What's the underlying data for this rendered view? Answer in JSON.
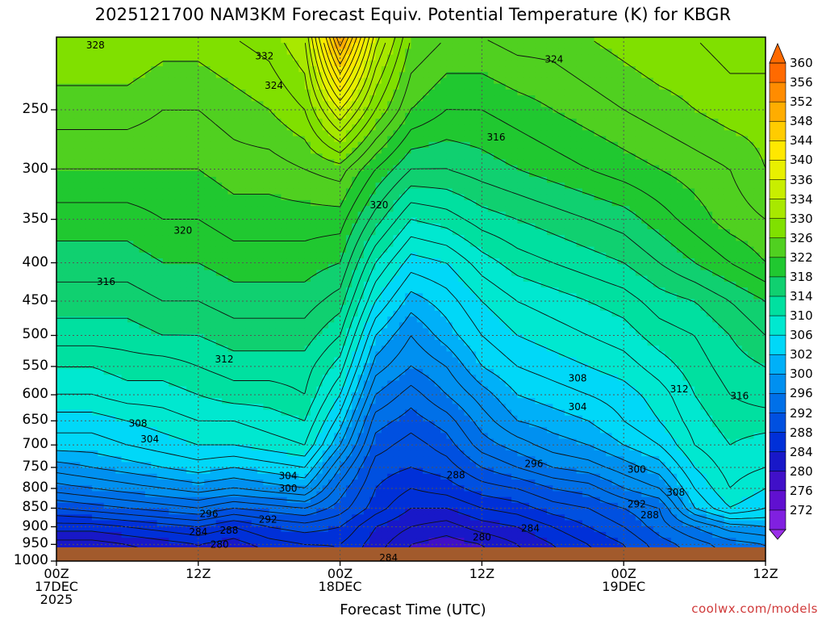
{
  "title": "2025121700 NAM3KM Forecast Equiv. Potential Temperature (K) for KBGR",
  "credit": "coolwx.com/models",
  "chart_data": {
    "type": "heatmap",
    "title": "2025121700 NAM3KM Forecast Equiv. Potential Temperature (K) for KBGR",
    "xlabel": "Forecast Time (UTC)",
    "ylabel": "",
    "x_range_hours": [
      0,
      60
    ],
    "y_range_hPa": [
      1000,
      200
    ],
    "y_scale": "log",
    "grid": true,
    "x_ticks": [
      {
        "hour": 0,
        "l1": "00Z",
        "l2": "17DEC",
        "l3": "2025"
      },
      {
        "hour": 12,
        "l1": "12Z",
        "l2": "",
        "l3": ""
      },
      {
        "hour": 24,
        "l1": "00Z",
        "l2": "18DEC",
        "l3": ""
      },
      {
        "hour": 36,
        "l1": "12Z",
        "l2": "",
        "l3": ""
      },
      {
        "hour": 48,
        "l1": "00Z",
        "l2": "19DEC",
        "l3": ""
      },
      {
        "hour": 60,
        "l1": "12Z",
        "l2": "",
        "l3": ""
      }
    ],
    "y_ticks": [
      "250",
      "300",
      "350",
      "400",
      "450",
      "500",
      "550",
      "600",
      "650",
      "700",
      "750",
      "800",
      "850",
      "900",
      "950",
      "1000"
    ],
    "colorbar": {
      "labels": [
        "360",
        "356",
        "352",
        "348",
        "344",
        "340",
        "336",
        "334",
        "330",
        "326",
        "322",
        "318",
        "314",
        "310",
        "306",
        "302",
        "300",
        "296",
        "292",
        "288",
        "284",
        "280",
        "276",
        "272"
      ],
      "colors": [
        "#ff6a00",
        "#ff8c00",
        "#ffad00",
        "#ffcc00",
        "#ffe800",
        "#e8f000",
        "#c8ee00",
        "#a8e800",
        "#80e000",
        "#50d020",
        "#20c830",
        "#10d070",
        "#00e0a0",
        "#00e8d0",
        "#00d8f8",
        "#00b0f8",
        "#0090f0",
        "#0070e8",
        "#0050e0",
        "#0030d8",
        "#1818c8",
        "#4010c8",
        "#6010d0",
        "#8020e0"
      ]
    },
    "time_series_hours": [
      0,
      3,
      6,
      9,
      12,
      15,
      18,
      21,
      24,
      27,
      30,
      33,
      36,
      39,
      42,
      45,
      48,
      51,
      54,
      57,
      60
    ],
    "levels_hPa": [
      1000,
      950,
      900,
      850,
      800,
      750,
      700,
      650,
      600,
      550,
      500,
      450,
      400,
      350,
      300,
      250,
      200
    ],
    "values_K": [
      [
        279,
        279,
        280,
        282,
        283,
        281,
        283,
        284,
        286,
        282,
        279,
        278,
        279,
        281,
        283,
        285,
        287,
        290,
        292,
        294,
        295
      ],
      [
        281,
        281,
        282,
        283,
        284,
        283,
        285,
        286,
        286,
        283,
        280,
        279,
        280,
        282,
        284,
        286,
        288,
        291,
        293,
        295,
        296
      ],
      [
        285,
        285,
        286,
        287,
        288,
        286,
        288,
        289,
        288,
        284,
        282,
        281,
        283,
        284,
        286,
        288,
        290,
        293,
        296,
        299,
        300
      ],
      [
        290,
        291,
        292,
        293,
        294,
        292,
        293,
        294,
        291,
        287,
        284,
        284,
        286,
        287,
        289,
        290,
        292,
        294,
        302,
        306,
        304
      ],
      [
        295,
        296,
        297,
        298,
        299,
        298,
        299,
        300,
        293,
        288,
        286,
        287,
        289,
        290,
        292,
        293,
        296,
        298,
        304,
        308,
        306
      ],
      [
        299,
        300,
        301,
        302,
        303,
        302,
        303,
        304,
        296,
        289,
        288,
        289,
        292,
        294,
        296,
        297,
        299,
        301,
        306,
        309,
        308
      ],
      [
        303,
        303,
        304,
        305,
        306,
        306,
        307,
        308,
        300,
        291,
        289,
        291,
        295,
        297,
        299,
        300,
        302,
        304,
        308,
        310,
        309
      ],
      [
        305,
        305,
        306,
        307,
        308,
        308,
        309,
        310,
        303,
        293,
        291,
        293,
        297,
        300,
        301,
        302,
        304,
        306,
        309,
        311,
        311
      ],
      [
        308,
        308,
        309,
        309,
        310,
        311,
        311,
        312,
        306,
        296,
        293,
        296,
        299,
        302,
        303,
        304,
        305,
        307,
        310,
        312,
        313
      ],
      [
        310,
        310,
        311,
        311,
        312,
        313,
        313,
        313,
        309,
        299,
        296,
        298,
        302,
        304,
        305,
        306,
        307,
        309,
        311,
        313,
        314
      ],
      [
        313,
        313,
        313,
        314,
        314,
        315,
        315,
        315,
        312,
        302,
        298,
        301,
        304,
        306,
        307,
        308,
        309,
        311,
        312,
        314,
        316
      ],
      [
        315,
        315,
        315,
        316,
        316,
        317,
        317,
        317,
        315,
        306,
        301,
        303,
        306,
        308,
        309,
        310,
        311,
        313,
        314,
        316,
        318
      ],
      [
        317,
        317,
        317,
        318,
        318,
        319,
        319,
        319,
        318,
        310,
        305,
        306,
        309,
        311,
        312,
        313,
        314,
        316,
        318,
        320,
        322
      ],
      [
        319,
        319,
        319,
        320,
        320,
        321,
        321,
        321,
        321,
        315,
        310,
        311,
        313,
        314,
        315,
        316,
        317,
        319,
        321,
        323,
        324
      ],
      [
        322,
        322,
        322,
        322,
        322,
        323,
        323,
        324,
        325,
        320,
        316,
        316,
        317,
        318,
        319,
        320,
        321,
        322,
        323,
        324,
        326
      ],
      [
        325,
        325,
        325,
        324,
        324,
        325,
        326,
        328,
        336,
        328,
        322,
        320,
        320,
        321,
        322,
        323,
        324,
        325,
        326,
        327,
        327
      ],
      [
        328,
        328,
        328,
        327,
        327,
        328,
        329,
        332,
        352,
        335,
        326,
        324,
        324,
        325,
        325,
        326,
        327,
        328,
        328,
        329,
        329
      ]
    ],
    "contour_labels": [
      {
        "value": "328",
        "hour": 3.3,
        "hPa": 205
      },
      {
        "value": "332",
        "hour": 17.6,
        "hPa": 212
      },
      {
        "value": "324",
        "hour": 18.4,
        "hPa": 232
      },
      {
        "value": "324",
        "hour": 42.1,
        "hPa": 214
      },
      {
        "value": "316",
        "hour": 37.2,
        "hPa": 272
      },
      {
        "value": "320",
        "hour": 27.3,
        "hPa": 335
      },
      {
        "value": "320",
        "hour": 10.7,
        "hPa": 362
      },
      {
        "value": "316",
        "hour": 4.2,
        "hPa": 424
      },
      {
        "value": "312",
        "hour": 14.2,
        "hPa": 538
      },
      {
        "value": "308",
        "hour": 44.1,
        "hPa": 570
      },
      {
        "value": "312",
        "hour": 52.7,
        "hPa": 590
      },
      {
        "value": "316",
        "hour": 57.8,
        "hPa": 602
      },
      {
        "value": "304",
        "hour": 44.1,
        "hPa": 623
      },
      {
        "value": "308",
        "hour": 6.9,
        "hPa": 655
      },
      {
        "value": "304",
        "hour": 7.9,
        "hPa": 688
      },
      {
        "value": "296",
        "hour": 40.4,
        "hPa": 742
      },
      {
        "value": "300",
        "hour": 49.1,
        "hPa": 755
      },
      {
        "value": "288",
        "hour": 33.8,
        "hPa": 768
      },
      {
        "value": "304",
        "hour": 19.6,
        "hPa": 770
      },
      {
        "value": "300",
        "hour": 19.6,
        "hPa": 800
      },
      {
        "value": "308",
        "hour": 52.4,
        "hPa": 810
      },
      {
        "value": "292",
        "hour": 49.1,
        "hPa": 840
      },
      {
        "value": "296",
        "hour": 12.9,
        "hPa": 865
      },
      {
        "value": "288",
        "hour": 50.2,
        "hPa": 868
      },
      {
        "value": "292",
        "hour": 17.9,
        "hPa": 880
      },
      {
        "value": "284",
        "hour": 40.1,
        "hPa": 905
      },
      {
        "value": "288",
        "hour": 14.6,
        "hPa": 910
      },
      {
        "value": "284",
        "hour": 12.0,
        "hPa": 915
      },
      {
        "value": "280",
        "hour": 36.0,
        "hPa": 930
      },
      {
        "value": "280",
        "hour": 13.8,
        "hPa": 950
      },
      {
        "value": "284",
        "hour": 28.1,
        "hPa": 990
      }
    ]
  }
}
